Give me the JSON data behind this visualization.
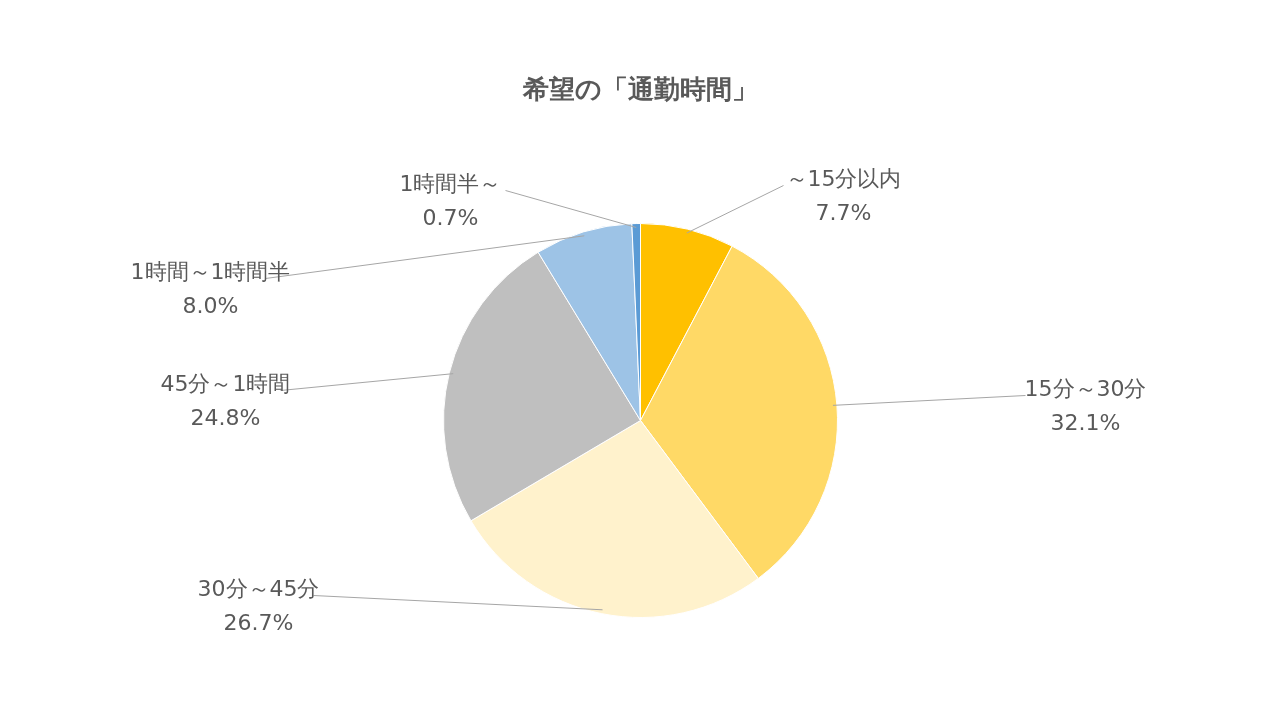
{
  "chart_data": {
    "type": "pie",
    "title": "希望の「通勤時間」",
    "categories": [
      "～15分以内",
      "15分～30分",
      "30分～45分",
      "45分～1時間",
      "1時間～1時間半",
      "1時間半～"
    ],
    "values": [
      7.7,
      32.1,
      26.7,
      24.8,
      8.0,
      0.7
    ],
    "value_labels": [
      "7.7%",
      "32.1%",
      "26.7%",
      "24.8%",
      "8.0%",
      "0.7%"
    ],
    "colors": [
      "#ffc000",
      "#ffd966",
      "#fff2cc",
      "#bfbfbf",
      "#9dc3e6",
      "#5b9bd5"
    ]
  }
}
